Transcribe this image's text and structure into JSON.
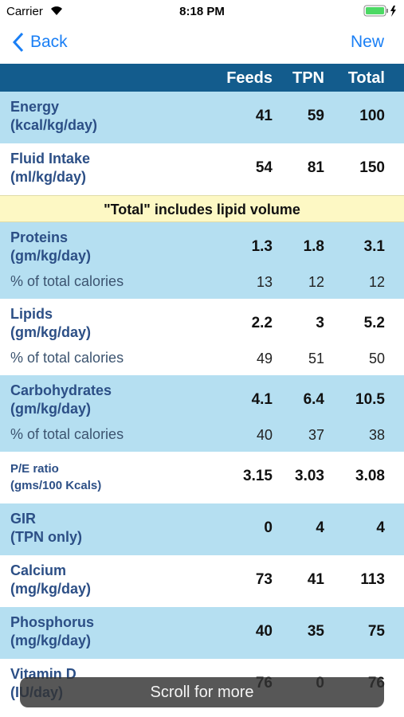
{
  "status_bar": {
    "carrier": "Carrier",
    "time": "8:18 PM"
  },
  "nav": {
    "back": "Back",
    "action": "New"
  },
  "table": {
    "columns": [
      "Feeds",
      "TPN",
      "Total"
    ],
    "rows": [
      {
        "name": "Energy",
        "unit": "(kcal/kg/day)",
        "values": [
          41,
          59,
          100
        ]
      },
      {
        "name": "Fluid Intake",
        "unit": "(ml/kg/day)",
        "values": [
          54,
          81,
          150
        ]
      },
      {
        "note": "\"Total\" includes lipid volume"
      },
      {
        "name": "Proteins",
        "unit": "(gm/kg/day)",
        "values": [
          1.3,
          1.8,
          3.1
        ],
        "sub_label": "% of total calories",
        "sub_values": [
          13,
          12,
          12
        ]
      },
      {
        "name": "Lipids",
        "unit": "(gm/kg/day)",
        "values": [
          2.2,
          3,
          5.2
        ],
        "sub_label": "% of total calories",
        "sub_values": [
          49,
          51,
          50
        ]
      },
      {
        "name": "Carbohydrates",
        "unit": "(gm/kg/day)",
        "values": [
          4.1,
          6.4,
          10.5
        ],
        "sub_label": "% of total calories",
        "sub_values": [
          40,
          37,
          38
        ]
      },
      {
        "name": "P/E ratio",
        "unit": "(gms/100 Kcals)",
        "values": [
          3.15,
          3.03,
          3.08
        ],
        "small": true
      },
      {
        "name": "GIR",
        "unit": "(TPN only)",
        "values": [
          0,
          4,
          4
        ]
      },
      {
        "name": "Calcium",
        "unit": "(mg/kg/day)",
        "values": [
          73,
          41,
          113
        ]
      },
      {
        "name": "Phosphorus",
        "unit": "(mg/kg/day)",
        "values": [
          40,
          35,
          75
        ]
      },
      {
        "name": "Vitamin D",
        "unit": "(IU/day)",
        "values": [
          76,
          0,
          76
        ]
      }
    ]
  },
  "toast": "Scroll for more"
}
